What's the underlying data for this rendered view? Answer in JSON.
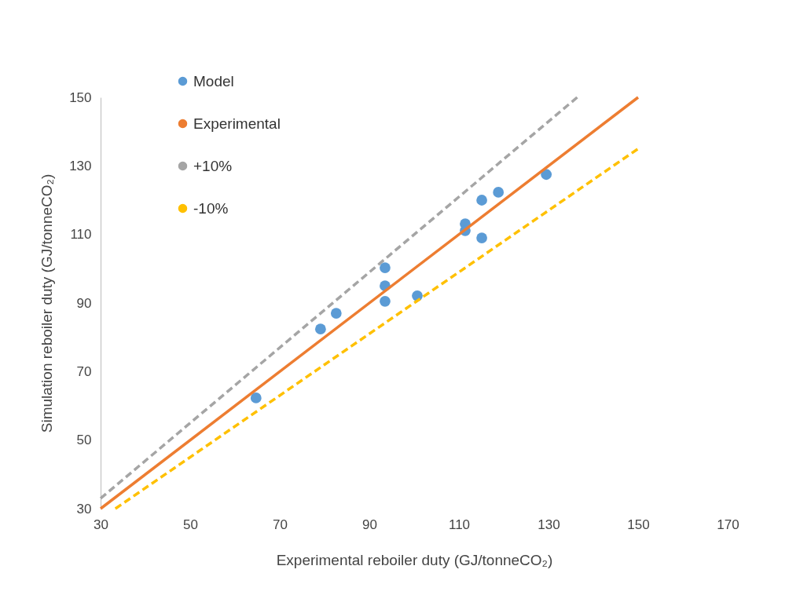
{
  "chart_data": {
    "type": "scatter",
    "xlabel": "Experimental reboiler duty (GJ/tonneCO₂)",
    "ylabel": "Simulation reboiler duty (GJ/tonneCO₂)",
    "xlim": [
      30,
      170
    ],
    "ylim": [
      30,
      150
    ],
    "xticks": [
      30,
      50,
      70,
      90,
      110,
      130,
      150,
      170
    ],
    "yticks": [
      30,
      50,
      70,
      90,
      110,
      130,
      150
    ],
    "grid": false,
    "legend": "top left",
    "series": [
      {
        "name": "Model",
        "marker": "circle",
        "color": "#5b9bd5",
        "x": [
          64.7,
          79.1,
          82.6,
          93.5,
          93.5,
          93.5,
          100.7,
          111.4,
          111.4,
          115.1,
          115.1,
          118.8,
          129.5
        ],
        "values": [
          62.3,
          82.4,
          87.0,
          100.3,
          95.0,
          90.5,
          92.1,
          113.1,
          111.1,
          120.0,
          109.0,
          122.3,
          127.5
        ]
      },
      {
        "name": "Experimental",
        "type": "line",
        "line_style": "solid",
        "color": "#ed7d31",
        "x": [
          30,
          150
        ],
        "values": [
          30,
          150
        ]
      },
      {
        "name": "+10%",
        "type": "line",
        "line_style": "dashed",
        "color": "#a5a5a5",
        "x": [
          30,
          136.4
        ],
        "values": [
          33,
          150
        ]
      },
      {
        "name": "-10%",
        "type": "line",
        "line_style": "dashed",
        "color": "#ffc000",
        "x": [
          33.3,
          150
        ],
        "values": [
          30,
          135
        ]
      }
    ]
  }
}
